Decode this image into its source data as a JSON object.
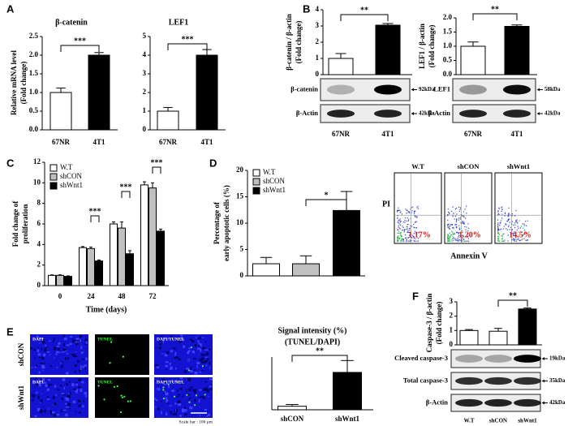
{
  "panel_labels": [
    "A",
    "B",
    "C",
    "D",
    "E",
    "F"
  ],
  "chart_data": [
    {
      "type": "bar",
      "title": "β-catenin",
      "ylabel": [
        "Relative mRNA level",
        "(Fold change)"
      ],
      "categories": [
        "67NR",
        "4T1"
      ],
      "values": [
        1.0,
        2.0
      ],
      "errors": [
        0.12,
        0.07
      ],
      "colors": [
        "#ffffff",
        "#000000"
      ],
      "ylim": [
        0,
        2.5
      ],
      "yticks": [
        {
          "value": 0,
          "label": "0.0"
        },
        {
          "value": 0.5,
          "label": "0.5"
        },
        {
          "value": 1,
          "label": "1.0"
        },
        {
          "value": 1.5,
          "label": "1.5"
        },
        {
          "value": 2,
          "label": "2.0"
        },
        {
          "value": 2.5,
          "label": "2.5"
        }
      ],
      "annotations": [
        "***"
      ]
    },
    {
      "type": "bar",
      "title": "LEF1",
      "categories": [
        "67NR",
        "4T1"
      ],
      "values": [
        1.0,
        4.0
      ],
      "errors": [
        0.2,
        0.3
      ],
      "colors": [
        "#ffffff",
        "#000000"
      ],
      "ylim": [
        0,
        5
      ],
      "yticks": [
        0,
        1,
        2,
        3,
        4,
        5
      ],
      "annotations": [
        "***"
      ]
    },
    {
      "type": "bar",
      "ylabel": [
        "β-catenin / β-actin",
        "(Fold change)"
      ],
      "categories": [
        "67NR",
        "4T1"
      ],
      "values": [
        1.0,
        3.05
      ],
      "errors": [
        0.3,
        0.1
      ],
      "colors": [
        "#ffffff",
        "#000000"
      ],
      "ylim": [
        0,
        4
      ],
      "yticks": [
        0,
        1,
        2,
        3,
        4
      ],
      "annotations": [
        "**"
      ]
    },
    {
      "type": "bar",
      "ylabel": [
        "LEF1 / β-actin",
        "(Fold change)"
      ],
      "categories": [
        "67NR",
        "4T1"
      ],
      "values": [
        1.0,
        1.7
      ],
      "errors": [
        0.15,
        0.05
      ],
      "colors": [
        "#ffffff",
        "#000000"
      ],
      "ylim": [
        0,
        2
      ],
      "yticks": [
        {
          "value": 0,
          "label": "0.0"
        },
        {
          "value": 0.5,
          "label": "0.5"
        },
        {
          "value": 1,
          "label": "1.0"
        },
        {
          "value": 1.5,
          "label": "1.5"
        },
        {
          "value": 2,
          "label": "2.0"
        }
      ],
      "annotations": [
        "**"
      ]
    },
    {
      "type": "grouped-bar",
      "ylabel": [
        "Fold change of",
        "proliferation"
      ],
      "xlabel": "Time (days)",
      "categories": [
        "0",
        "24",
        "48",
        "72"
      ],
      "series": [
        {
          "name": "W.T",
          "color": "#ffffff",
          "values": [
            1.0,
            3.7,
            6.0,
            9.8
          ],
          "errors": [
            0.05,
            0.1,
            0.2,
            0.3
          ]
        },
        {
          "name": "shCON",
          "color": "#c0c0c0",
          "values": [
            1.0,
            3.6,
            5.6,
            9.5
          ],
          "errors": [
            0.05,
            0.15,
            0.6,
            0.5
          ]
        },
        {
          "name": "shWnt1",
          "color": "#000000",
          "values": [
            0.9,
            2.4,
            3.1,
            5.3
          ],
          "errors": [
            0.05,
            0.1,
            0.3,
            0.2
          ]
        }
      ],
      "ylim": [
        0,
        12
      ],
      "yticks": [
        0,
        2,
        4,
        6,
        8,
        10,
        12
      ],
      "annotations": [
        "***",
        "***",
        "***"
      ]
    },
    {
      "type": "grouped-bar",
      "ylabel": [
        "Percentage of",
        "early apoptotic cells (%)"
      ],
      "categories": [
        null
      ],
      "series": [
        {
          "name": "W.T",
          "color": "#ffffff",
          "values": [
            2.3
          ],
          "errors": [
            1.2
          ]
        },
        {
          "name": "shCON",
          "color": "#c0c0c0",
          "values": [
            2.3
          ],
          "errors": [
            1.5
          ]
        },
        {
          "name": "shWnt1",
          "color": "#000000",
          "values": [
            12.4
          ],
          "errors": [
            3.6
          ]
        }
      ],
      "ylim": [
        0,
        20
      ],
      "yticks": [
        0,
        5,
        10,
        15,
        20
      ],
      "annotations": [
        "*"
      ]
    },
    {
      "type": "bar",
      "title": "Signal intensity (%)",
      "subtitle": "(TUNEL/DAPI)",
      "categories": [
        "shCON",
        "shWnt1"
      ],
      "values": [
        0.8,
        8.5
      ],
      "errors": [
        0.4,
        2.7
      ],
      "colors": [
        "#ffffff",
        "#000000"
      ],
      "ylim": [
        0,
        12
      ],
      "annotations": [
        "**"
      ]
    },
    {
      "type": "bar",
      "ylabel": [
        "Caspase-3 / β-actin",
        "(Fold change)"
      ],
      "categories": [
        "W.T",
        "shCON",
        "shWnt1"
      ],
      "values": [
        1.0,
        0.95,
        2.5
      ],
      "errors": [
        0.07,
        0.2,
        0.07
      ],
      "colors": [
        "#ffffff",
        "#ffffff",
        "#000000"
      ],
      "ylim": [
        0,
        3
      ],
      "yticks": [
        0,
        1,
        2,
        3
      ],
      "annotations": [
        "**"
      ]
    }
  ],
  "blots": [
    {
      "rows": [
        {
          "label": "β-catenin",
          "size": "92kDa"
        },
        {
          "label": "β-Actin",
          "size": "42kDa"
        }
      ]
    },
    {
      "rows": [
        {
          "label": "LEF1",
          "size": "58kDa"
        },
        {
          "label": "β-Actin",
          "size": "42kDa"
        }
      ]
    },
    {
      "rows": [
        {
          "label": "Cleaved caspase-3",
          "size": "19kDa"
        },
        {
          "label": "Total caspase-3",
          "size": "35kDa"
        },
        {
          "label": "β-Actin",
          "size": "42kDa"
        }
      ]
    }
  ],
  "flow": {
    "groups": [
      "W.T",
      "shCON",
      "shWnt1"
    ],
    "percentages": [
      "1.17%",
      "1.20%",
      "14.5%"
    ],
    "ylabel": "PI",
    "xlabel": "Annexin V"
  },
  "microscopy": {
    "channels": [
      "DAPI",
      "TUNEL",
      "DAPI/TUNEL"
    ],
    "rows": [
      "shCON",
      "shWnt1"
    ],
    "scale_bar": "Scale bar : 100 μm"
  }
}
